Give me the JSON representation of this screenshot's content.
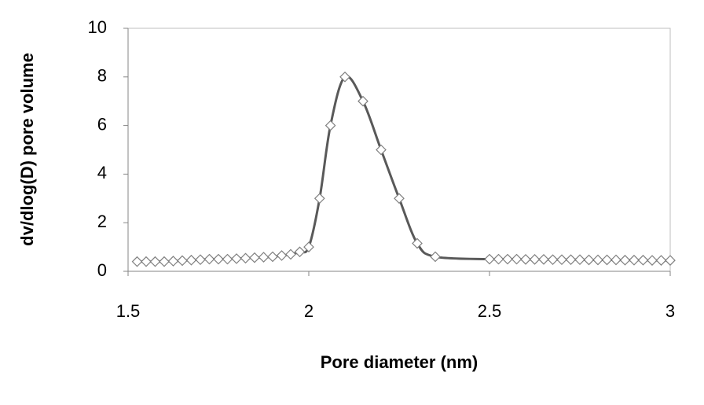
{
  "chart_data": {
    "type": "scatter",
    "x_label": "Pore diameter (nm)",
    "y_label": "dv/dlog(D) pore volume",
    "xlim": [
      1.5,
      3
    ],
    "ylim": [
      0,
      10
    ],
    "xticks": [
      1.5,
      2,
      2.5,
      3
    ],
    "yticks": [
      0,
      2,
      4,
      6,
      8,
      10
    ],
    "grid": false,
    "series": [
      {
        "color": "#595959",
        "marker_color": "#808080",
        "x": [
          1.525,
          1.55,
          1.575,
          1.6,
          1.625,
          1.65,
          1.675,
          1.7,
          1.725,
          1.75,
          1.775,
          1.8,
          1.825,
          1.85,
          1.875,
          1.9,
          1.925,
          1.95,
          1.975,
          2.0,
          2.03,
          2.06,
          2.1,
          2.15,
          2.2,
          2.25,
          2.3,
          2.35,
          2.5,
          2.525,
          2.55,
          2.575,
          2.6,
          2.625,
          2.65,
          2.675,
          2.7,
          2.725,
          2.75,
          2.775,
          2.8,
          2.825,
          2.85,
          2.875,
          2.9,
          2.925,
          2.95,
          2.975,
          3.0
        ],
        "values": [
          0.4,
          0.4,
          0.4,
          0.4,
          0.42,
          0.44,
          0.46,
          0.48,
          0.5,
          0.5,
          0.5,
          0.52,
          0.54,
          0.56,
          0.58,
          0.6,
          0.65,
          0.7,
          0.8,
          1.0,
          3.0,
          6.0,
          8.0,
          7.0,
          5.0,
          3.0,
          1.15,
          0.6,
          0.5,
          0.5,
          0.5,
          0.5,
          0.49,
          0.49,
          0.49,
          0.48,
          0.48,
          0.48,
          0.48,
          0.47,
          0.47,
          0.47,
          0.47,
          0.46,
          0.46,
          0.46,
          0.45,
          0.45,
          0.45
        ]
      }
    ]
  }
}
